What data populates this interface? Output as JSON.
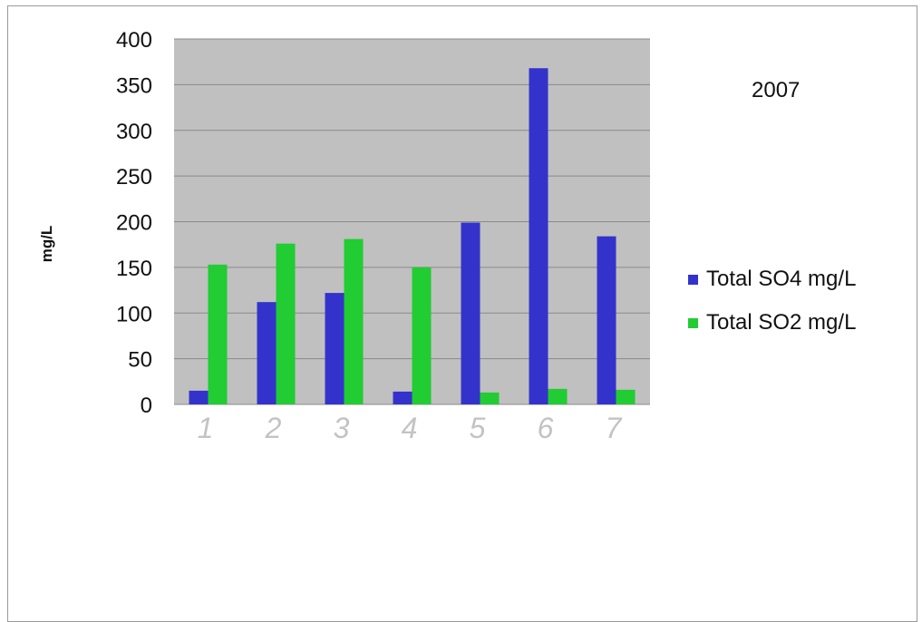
{
  "chart_data": {
    "type": "bar",
    "title": "2007",
    "ylabel": "mg/L",
    "xlabel": "",
    "categories": [
      "1",
      "2",
      "3",
      "4",
      "5",
      "6",
      "7"
    ],
    "yticks": [
      "0",
      "50",
      "100",
      "150",
      "200",
      "250",
      "300",
      "350",
      "400"
    ],
    "ylim": [
      0,
      400
    ],
    "grid": true,
    "legend_position": "right",
    "plot_background": "#c0c0c0",
    "series": [
      {
        "name": "Total SO4 mg/L",
        "color": "#3333cc",
        "values": [
          15,
          112,
          122,
          14,
          199,
          368,
          184
        ]
      },
      {
        "name": "Total SO2 mg/L",
        "color": "#22cc33",
        "values": [
          153,
          176,
          181,
          150,
          13,
          17,
          16
        ]
      }
    ]
  }
}
